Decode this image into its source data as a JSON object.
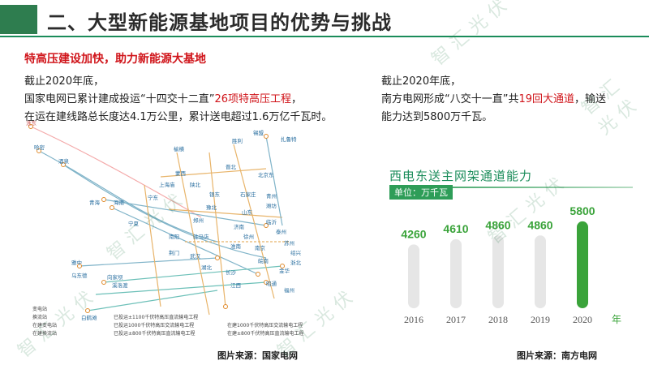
{
  "header": {
    "title": "二、大型新能源基地项目的优势与挑战"
  },
  "subtitle": "特高压建设加快，助力新能源大基地",
  "left": {
    "line1": "截止2020年底，",
    "line2_pre": "国家电网已累计建成投运“十四交十二直”",
    "line2_hl": "26项特高压工程",
    "line2_post": "，",
    "line3": "在运在建线路总长度达4.1万公里，累计送电超过1.6万亿千瓦时。"
  },
  "right": {
    "line1": "截止2020年底，",
    "line2_pre": "南方电网形成“八交十一直”共",
    "line2_hl": "19回大通道",
    "line2_post": "，输送",
    "line3": "能力达到5800万千瓦。"
  },
  "map": {
    "places": [
      "淮东",
      "哈密",
      "酒泉",
      "锡盟",
      "扎鲁特",
      "胜利",
      "榆横",
      "蒙西",
      "北京东",
      "上海庙",
      "陕北",
      "银东",
      "宁东",
      "石家庄",
      "晋北",
      "青海",
      "海南",
      "宁夏",
      "山东",
      "济南",
      "潍坊",
      "青州",
      "豫北",
      "郑州",
      "驻马店",
      "南阳",
      "武汉",
      "荆门",
      "临沂",
      "泰州",
      "苏州",
      "徐州",
      "淮南",
      "南京",
      "皖南",
      "锡盟",
      "绍兴",
      "金华",
      "浙北",
      "福州",
      "雅中",
      "白鹤滩",
      "向家坝",
      "溪洛渡",
      "湖北",
      "江西",
      "昭通",
      "乌东德",
      "长沙"
    ],
    "legend": {
      "col1": [
        "变电站",
        "换流站",
        "在建变电站",
        "在建换流站"
      ],
      "col2": [
        "已投运±1100千伏特高压直流输电工程",
        "已投运1000千伏特高压交流输电工程",
        "已投运±800千伏特高压直流输电工程"
      ],
      "col3": [
        "在建1000千伏特高压交流输电工程",
        "在建±800千伏特高压直流输电工程"
      ]
    }
  },
  "source_left": "图片来源：国家电网",
  "source_right": "图片来源：南方电网",
  "chart_data": {
    "type": "bar",
    "title": "西电东送主网架通道能力",
    "unit": "单位：万千瓦",
    "categories": [
      "2016",
      "2017",
      "2018",
      "2019",
      "2020"
    ],
    "values": [
      4260,
      4610,
      4860,
      4860,
      5800
    ],
    "x_suffix": "年",
    "ylim": [
      0,
      6500
    ],
    "colors": {
      "bar": "#e6e6e6",
      "highlight": "#3aa33a",
      "label": "#3aa33a"
    }
  },
  "watermark": "智汇光伏",
  "colors": {
    "accent": "#1a8c5a",
    "highlight": "#d0141a"
  }
}
